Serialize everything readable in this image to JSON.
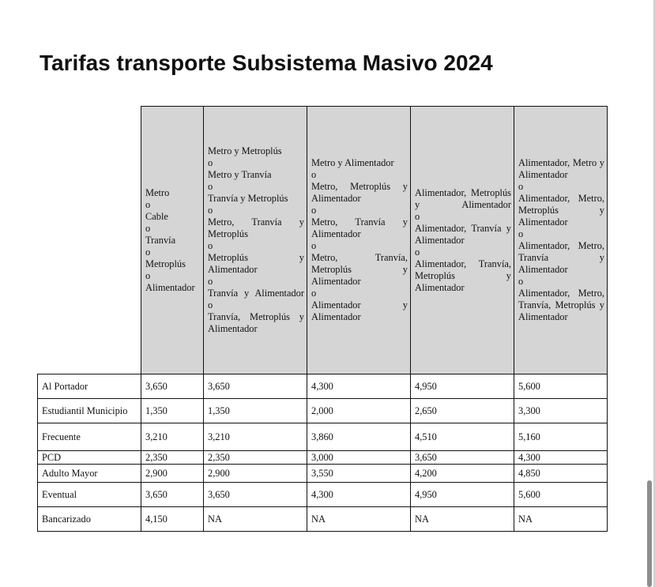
{
  "title": "Tarifas transporte Subsistema Masivo 2024",
  "columns": [
    {
      "lines": [
        "Metro",
        "o",
        "Cable",
        "o",
        "Tranvía",
        "o",
        "Metroplús",
        "o",
        "Alimentador"
      ]
    },
    {
      "lines": [
        "Metro y Metroplús",
        "o",
        "Metro y Tranvía",
        "o",
        "Tranvía y Metroplús",
        "o",
        "Metro, Tranvía y Metroplús",
        "o",
        "Metroplús y Alimentador",
        "o",
        "Tranvía y Alimentador",
        "o",
        "Tranvía, Metroplús y Alimentador"
      ]
    },
    {
      "lines": [
        "Metro y Alimentador",
        "o",
        "Metro, Metroplús y Alimentador",
        "o",
        "Metro, Tranvía y Alimentador",
        "o",
        "Metro, Tranvía, Metroplús y Alimentador",
        "o",
        "Alimentador y Alimentador"
      ]
    },
    {
      "lines": [
        "Alimentador, Metroplús y Alimentador",
        "o",
        "Alimentador, Tranvía y Alimentador",
        "o",
        "Alimentador, Tranvía, Metroplús y Alimentador"
      ]
    },
    {
      "lines": [
        "Alimentador, Metro y Alimentador",
        "o",
        "Alimentador, Metro, Metroplús y Alimentador",
        "o",
        "Alimentador, Metro, Tranvía y Alimentador",
        "o",
        "Alimentador, Metro, Tranvía, Metroplús y Alimentador"
      ]
    }
  ],
  "rows": [
    {
      "label": "Al Portador",
      "values": [
        "3,650",
        "3,650",
        "4,300",
        "4,950",
        "5,600"
      ]
    },
    {
      "label": "Estudiantil Municipio",
      "values": [
        "1,350",
        "1,350",
        "2,000",
        "2,650",
        "3,300"
      ]
    },
    {
      "label": "Frecuente",
      "values": [
        "3,210",
        "3,210",
        "3,860",
        "4,510",
        "5,160"
      ]
    },
    {
      "label": "PCD",
      "values": [
        "2,350",
        "2,350",
        "3,000",
        "3,650",
        "4,300"
      ]
    },
    {
      "label": "Adulto Mayor",
      "values": [
        "2,900",
        "2,900",
        "3,550",
        "4,200",
        "4,850"
      ]
    },
    {
      "label": "Eventual",
      "values": [
        "3,650",
        "3,650",
        "4,300",
        "4,950",
        "5,600"
      ]
    },
    {
      "label": "Bancarizado",
      "values": [
        "4,150",
        "NA",
        "NA",
        "NA",
        "NA"
      ]
    }
  ]
}
